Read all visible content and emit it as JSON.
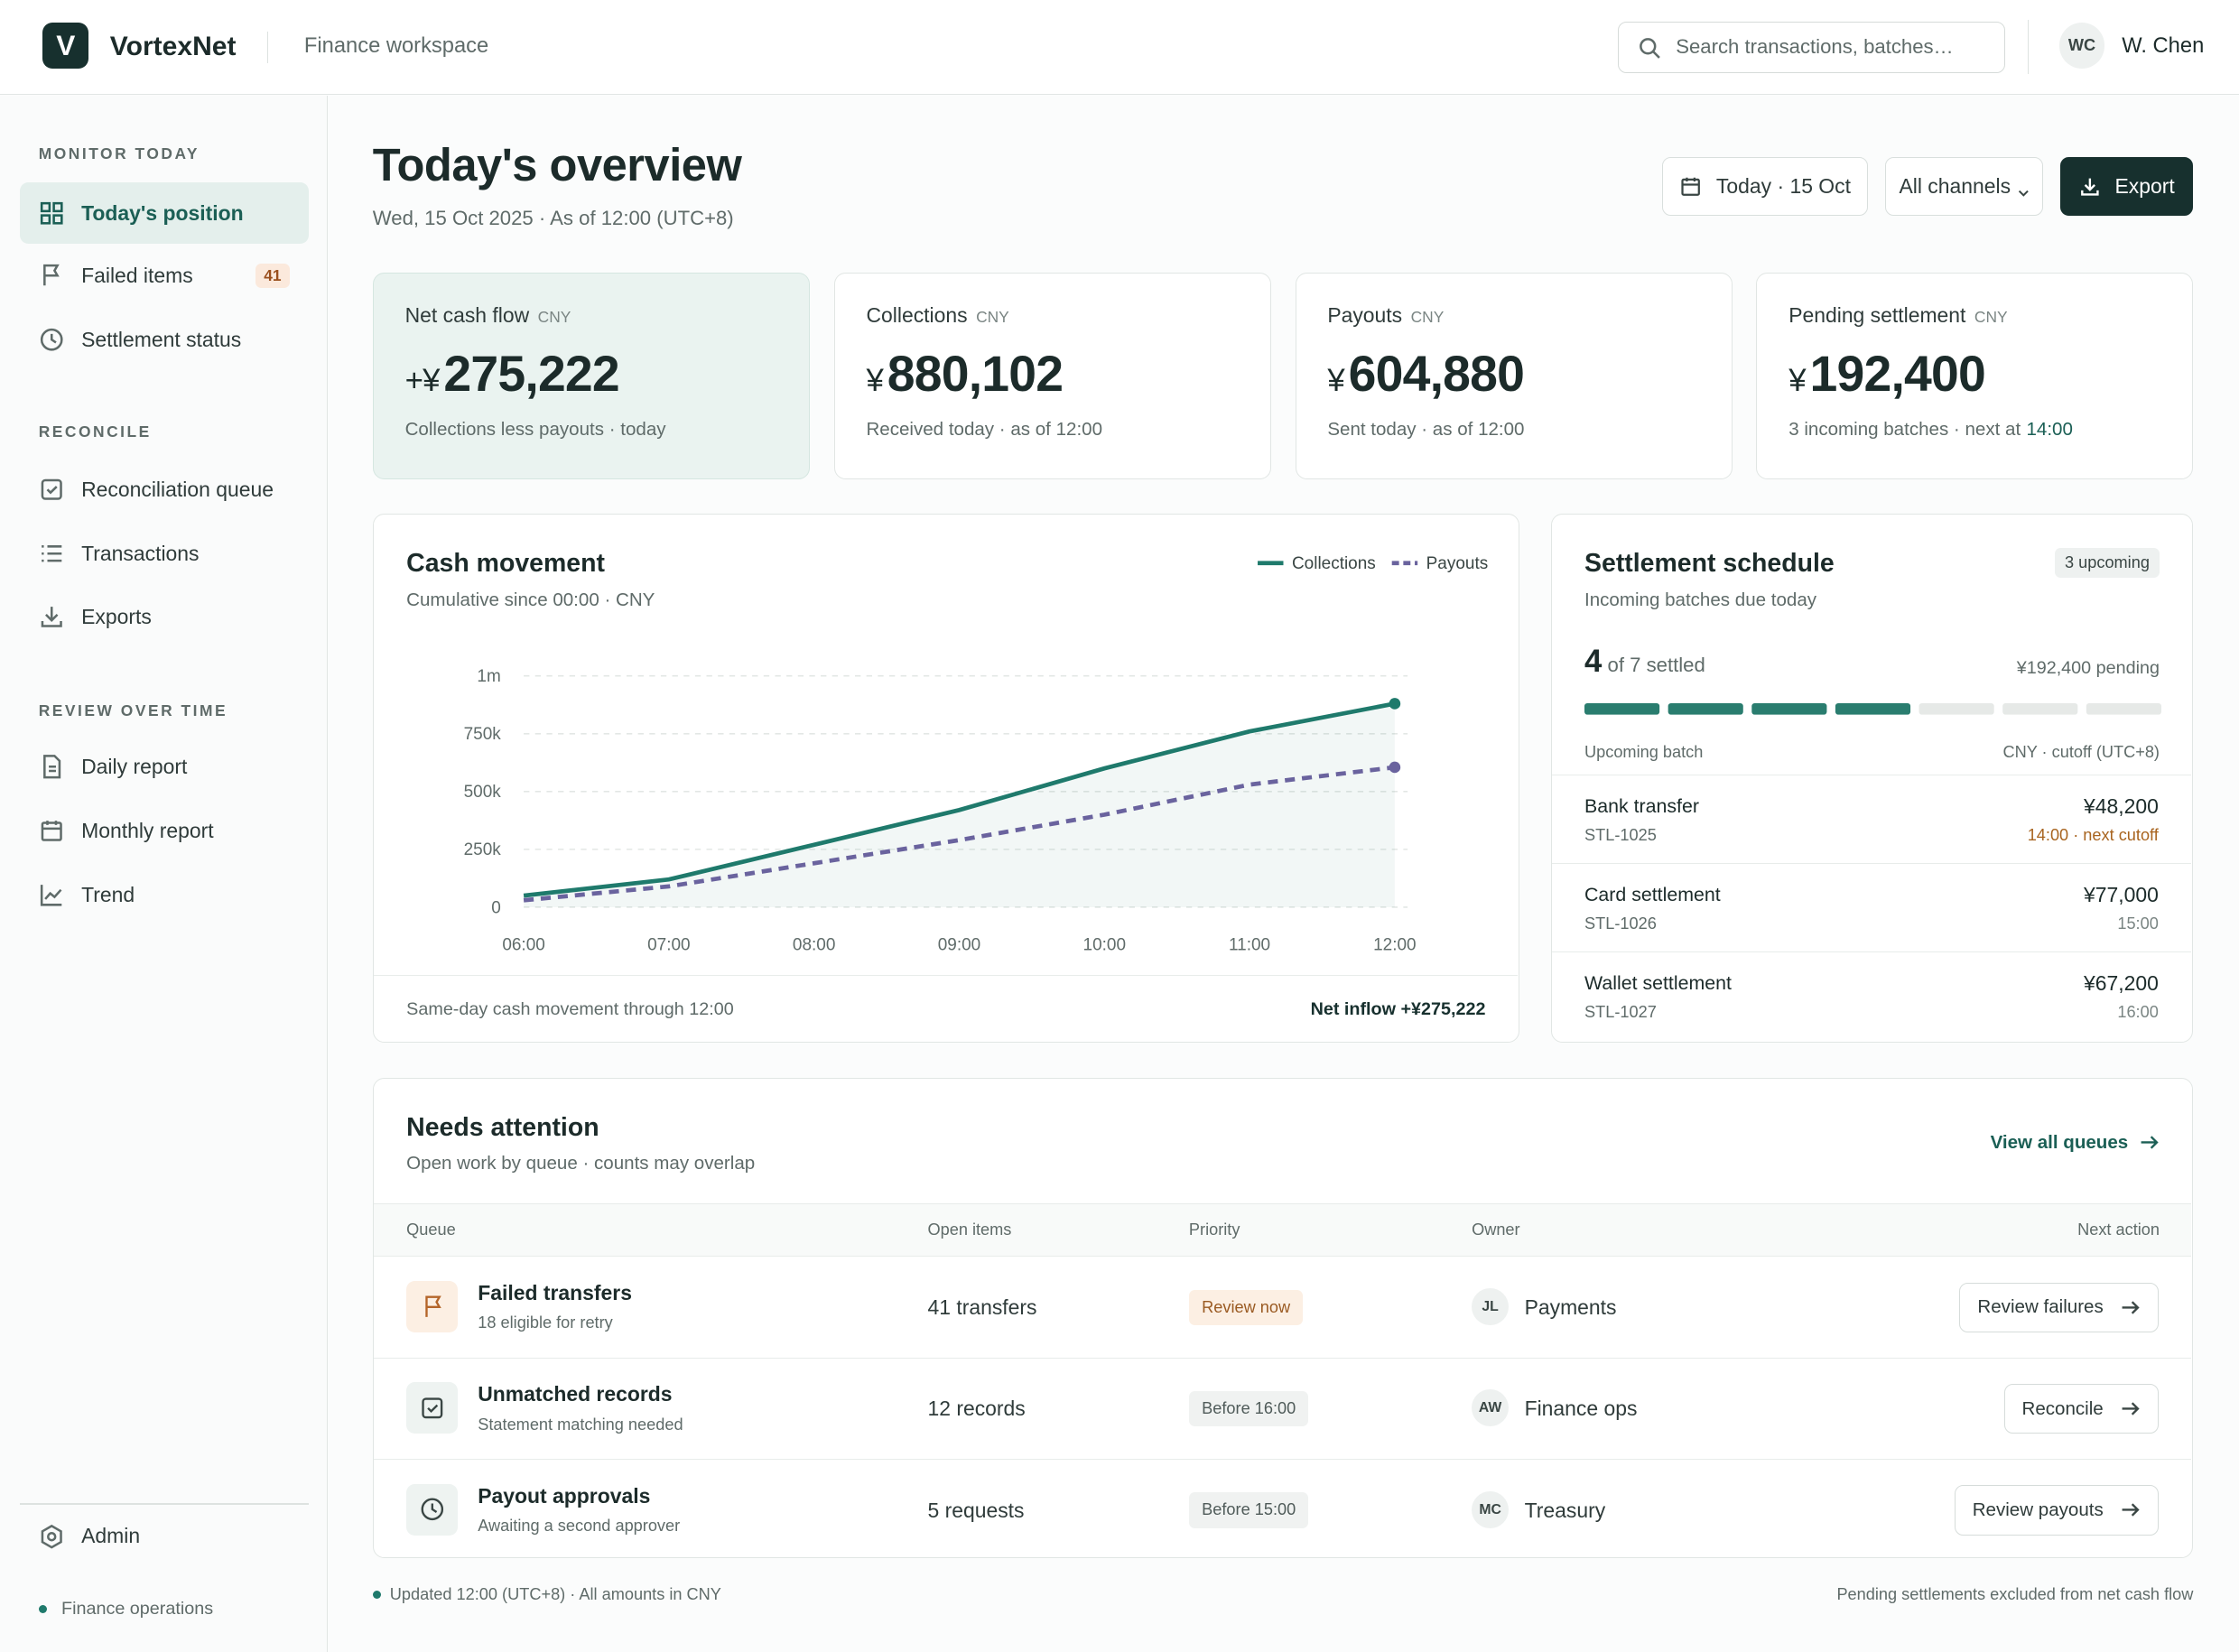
{
  "header": {
    "logo_letter": "V",
    "brand": "VortexNet",
    "workspace": "Finance workspace",
    "search_placeholder": "Search transactions, batches…",
    "user_initials": "WC",
    "user_name": "W. Chen"
  },
  "sidebar": {
    "sections": [
      {
        "title": "MONITOR TODAY",
        "items": [
          {
            "label": "Today's position"
          },
          {
            "label": "Failed items",
            "badge": 41
          },
          {
            "label": "Settlement status"
          }
        ]
      },
      {
        "title": "RECONCILE",
        "items": [
          {
            "label": "Reconciliation queue"
          },
          {
            "label": "Transactions"
          },
          {
            "label": "Exports"
          }
        ]
      },
      {
        "title": "REVIEW OVER TIME",
        "items": [
          {
            "label": "Daily report"
          },
          {
            "label": "Monthly report"
          },
          {
            "label": "Trend"
          }
        ]
      }
    ],
    "admin": "Admin",
    "status": "Finance operations"
  },
  "page": {
    "title": "Today's overview",
    "subtitle": "Wed, 15 Oct 2025 · As of 12:00 (UTC+8)",
    "date_button": "Today · 15 Oct",
    "channel_button": "All channels",
    "export_button": "Export"
  },
  "kpis": [
    {
      "label": "Net cash flow",
      "unit": "CNY",
      "prefix": "+¥",
      "value": "275,222",
      "note": "Collections less payouts · today"
    },
    {
      "label": "Collections",
      "unit": "CNY",
      "prefix": "¥",
      "value": "880,102",
      "note": "Received today · as of 12:00"
    },
    {
      "label": "Payouts",
      "unit": "CNY",
      "prefix": "¥",
      "value": "604,880",
      "note": "Sent today · as of 12:00"
    },
    {
      "label": "Pending settlement",
      "unit": "CNY",
      "prefix": "¥",
      "value": "192,400",
      "note": "3 incoming batches · next at",
      "note_time": "14:00"
    }
  ],
  "cash_movement": {
    "title": "Cash movement",
    "subtitle": "Cumulative since 00:00 · CNY",
    "chart": {
      "type": "line",
      "categories": [
        "06:00",
        "07:00",
        "08:00",
        "09:00",
        "10:00",
        "11:00",
        "12:00"
      ],
      "series": [
        {
          "name": "Collections",
          "color": "#1f7a6c",
          "dashed": false,
          "area": true,
          "values": [
            50000,
            120000,
            270000,
            420000,
            600000,
            760000,
            880102
          ]
        },
        {
          "name": "Payouts",
          "color": "#6a639e",
          "dashed": true,
          "area": false,
          "values": [
            30000,
            90000,
            190000,
            290000,
            400000,
            530000,
            604880
          ]
        }
      ],
      "ylim": [
        0,
        1000000
      ],
      "yticks": [
        0,
        {
          "value": 250000,
          "label": "250k"
        },
        {
          "value": 500000,
          "label": "500k"
        },
        {
          "value": 750000,
          "label": "750k"
        },
        {
          "value": 1000000,
          "label": "1m"
        }
      ],
      "grid": true
    },
    "footer_note": "Same-day cash movement through 12:00",
    "footer_total": "Net inflow +¥275,222"
  },
  "settlement": {
    "title": "Settlement schedule",
    "badge": "3 upcoming",
    "subtitle": "Incoming batches due today",
    "settled": 4,
    "of_word": "of",
    "total": 7,
    "settled_word": "settled",
    "pending": "¥192,400 pending",
    "col_left": "Upcoming batch",
    "col_right": "CNY · cutoff (UTC+8)",
    "batches": [
      {
        "name": "Bank transfer",
        "id": "STL-1025",
        "amount": "¥48,200",
        "time": "14:00 · next cutoff"
      },
      {
        "name": "Card settlement",
        "id": "STL-1026",
        "amount": "¥77,000",
        "time": "15:00"
      },
      {
        "name": "Wallet settlement",
        "id": "STL-1027",
        "amount": "¥67,200",
        "time": "16:00"
      }
    ]
  },
  "attention": {
    "title": "Needs attention",
    "subtitle": "Open work by queue · counts may overlap",
    "link": "View all queues",
    "columns": [
      "Queue",
      "Open items",
      "Priority",
      "Owner",
      "Next action"
    ],
    "rows": [
      {
        "queue": "Failed transfers",
        "detail": "18 eligible for retry",
        "open": "41 transfers",
        "priority": "Review now",
        "owner_initials": "JL",
        "owner": "Payments",
        "action": "Review failures"
      },
      {
        "queue": "Unmatched records",
        "detail": "Statement matching needed",
        "open": "12 records",
        "priority": "Before 16:00",
        "owner_initials": "AW",
        "owner": "Finance ops",
        "action": "Reconcile"
      },
      {
        "queue": "Payout approvals",
        "detail": "Awaiting a second approver",
        "open": "5 requests",
        "priority": "Before 15:00",
        "owner_initials": "MC",
        "owner": "Treasury",
        "action": "Review payouts"
      }
    ]
  },
  "footer": {
    "left": "Updated 12:00 (UTC+8) · All amounts in CNY",
    "right": "Pending settlements excluded from net cash flow"
  }
}
